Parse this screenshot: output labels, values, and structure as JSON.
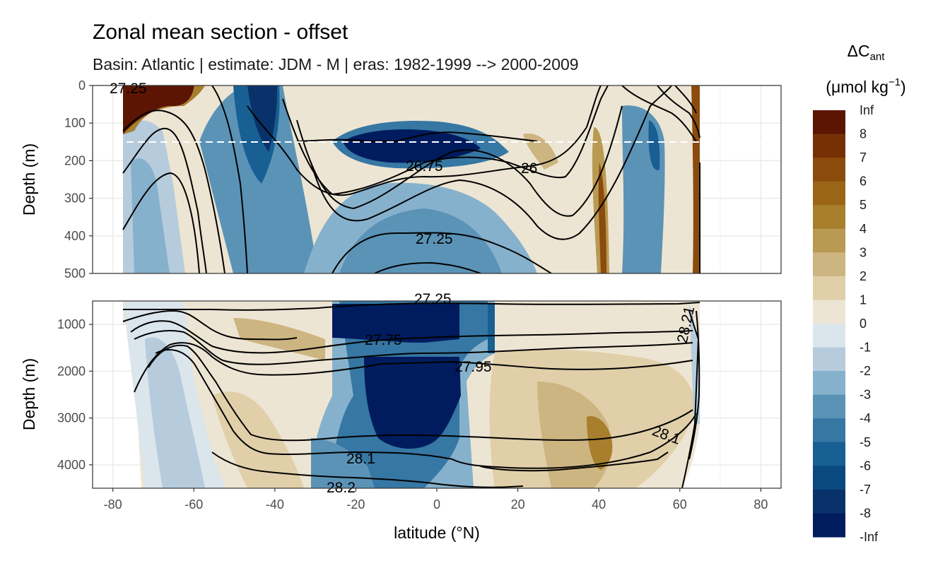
{
  "title": "Zonal mean section - offset",
  "subtitle": "Basin: Atlantic | estimate: JDM - M | eras: 1982-1999 --> 2000-2009",
  "chart_data": {
    "type": "heatmap",
    "xlabel": "latitude (°N)",
    "ylabel": "Depth (m)",
    "xlim": [
      -85,
      85
    ],
    "x_ticks": [
      "-80",
      "-60",
      "-40",
      "-20",
      "0",
      "20",
      "40",
      "60",
      "80"
    ],
    "panels": [
      {
        "name": "upper",
        "ylim": [
          0,
          500
        ],
        "y_ticks": [
          "0",
          "100",
          "200",
          "300",
          "400",
          "500"
        ],
        "reference_line_depth": 150
      },
      {
        "name": "lower",
        "ylim": [
          500,
          4500
        ],
        "y_ticks": [
          "1000",
          "2000",
          "3000",
          "4000"
        ]
      }
    ],
    "legend": {
      "title_main": "ΔC",
      "title_sub": "ant",
      "units_main": "(μmol kg",
      "units_sup": "−1",
      "units_close": ")",
      "labels": [
        "Inf",
        "8",
        "7",
        "6",
        "5",
        "4",
        "3",
        "2",
        "1",
        "0",
        "-1",
        "-2",
        "-3",
        "-4",
        "-5",
        "-6",
        "-7",
        "-8",
        "-Inf"
      ],
      "colors": [
        "#5c1503",
        "#773004",
        "#8a4b0d",
        "#9a6517",
        "#a87f2d",
        "#b99a52",
        "#cdb581",
        "#e0cfa8",
        "#ede5d3",
        "#dbe5ec",
        "#b6ccdd",
        "#86b1cc",
        "#5b93b7",
        "#3677a4",
        "#185f93",
        "#0a4880",
        "#0a326a",
        "#001c5f"
      ]
    },
    "contour_labels_upper": [
      "27.25",
      "26.75",
      "26",
      "27.25"
    ],
    "contour_labels_lower": [
      "27.25",
      "27.75",
      "27.95",
      "28.1",
      "28.2",
      "28.1",
      "28.21"
    ]
  }
}
